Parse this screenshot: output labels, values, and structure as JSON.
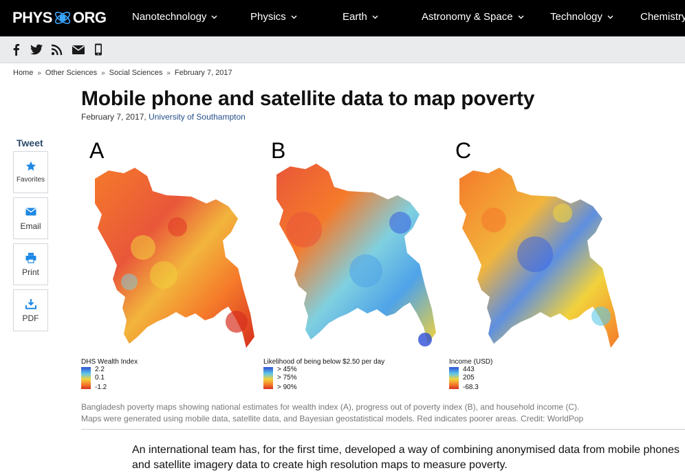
{
  "site": {
    "logo_left": "PHYS",
    "logo_right": "ORG"
  },
  "nav": {
    "items": [
      {
        "label": "Nanotechnology",
        "chevron": true
      },
      {
        "label": "Physics",
        "chevron": true
      },
      {
        "label": "Earth",
        "chevron": true
      },
      {
        "label": "Astronomy & Space",
        "chevron": true
      },
      {
        "label": "Technology",
        "chevron": true
      },
      {
        "label": "Chemistry",
        "chevron": false
      }
    ]
  },
  "social": {
    "icons": [
      "facebook-icon",
      "twitter-icon",
      "rss-icon",
      "email-icon",
      "mobile-icon"
    ]
  },
  "breadcrumb": {
    "items": [
      "Home",
      "Other Sciences",
      "Social Sciences",
      "February 7, 2017"
    ],
    "separator": "»"
  },
  "article": {
    "title": "Mobile phone and satellite data to map poverty",
    "date": "February 7, 2017",
    "date_sep": ", ",
    "source": "University of Southampton"
  },
  "share": {
    "tweet": "Tweet",
    "buttons": [
      {
        "label": "Favorites",
        "icon": "star-icon"
      },
      {
        "label": "Email",
        "icon": "email-icon"
      },
      {
        "label": "Print",
        "icon": "printer-icon"
      },
      {
        "label": "PDF",
        "icon": "download-icon"
      }
    ]
  },
  "figure": {
    "panels": [
      {
        "letter": "A",
        "legend_title": "DHS Wealth Index",
        "legend_values": [
          "2.2",
          "0.1",
          "-1.2"
        ]
      },
      {
        "letter": "B",
        "legend_title": "Likelihood of being below $2.50 per day",
        "legend_values": [
          "> 45%",
          "> 75%",
          "> 90%"
        ]
      },
      {
        "letter": "C",
        "legend_title": "Income (USD)",
        "legend_values": [
          "443",
          "205",
          "-68.3"
        ]
      }
    ],
    "colors": {
      "red": "#d7301f",
      "orange": "#f57a2a",
      "yellow": "#f2d23c",
      "cyan": "#5ec8e8",
      "blue": "#2d4fd6"
    }
  },
  "caption": {
    "line1": "Bangladesh poverty maps showing national estimates for wealth index (A), progress out of poverty index (B), and household income (C).",
    "line2": "Maps were generated using mobile data, satellite data, and Bayesian geostatistical models. Red indicates poorer areas. Credit: WorldPop"
  },
  "body": {
    "paragraph1": "An international team has, for the first time, developed a way of combining anonymised data from mobile phones and satellite imagery data to create high resolution maps to measure poverty."
  }
}
